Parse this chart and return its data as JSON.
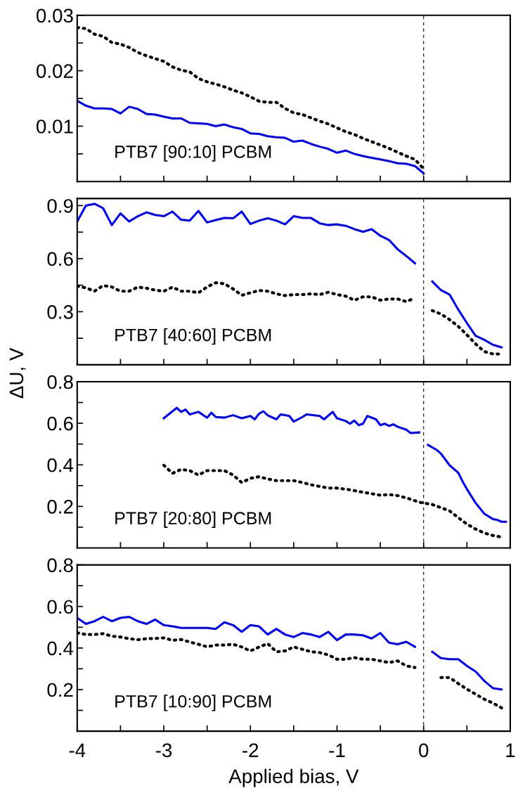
{
  "chart_data": [
    {
      "type": "line",
      "annotations": [
        "PTB7 [90:10] PCBM"
      ],
      "xlim": [
        -4,
        1
      ],
      "ylim": [
        0,
        0.03
      ],
      "tick_labels": "y",
      "marker": "none",
      "grid": false,
      "legend": false,
      "xticks": [
        -4,
        {
          "value": -3.5,
          "label": null
        },
        -3,
        {
          "value": -2.5,
          "label": null
        },
        -2,
        {
          "value": -1.5,
          "label": null
        },
        -1,
        {
          "value": -0.5,
          "label": null
        },
        0,
        {
          "value": 0.5,
          "label": null
        },
        1
      ],
      "yticks": [
        {
          "value": 0.005,
          "label": null
        },
        0.01,
        {
          "value": 0.015,
          "label": null
        },
        0.02,
        {
          "value": 0.025,
          "label": null
        },
        0.03
      ],
      "ref_lines": [
        {
          "axis": "x",
          "value": 0,
          "color": "#000000",
          "line_style": "dashed"
        }
      ],
      "series": [
        {
          "color": "#0000ff",
          "line_style": "solid",
          "x": [
            -4,
            -3.9,
            -3.8,
            -3.7,
            -3.6,
            -3.5,
            -3.4,
            -3.3,
            -3.2,
            -3.1,
            -3.0,
            -2.9,
            -2.8,
            -2.7,
            -2.6,
            -2.5,
            -2.4,
            -2.3,
            -2.2,
            -2.1,
            -2.0,
            -1.9,
            -1.8,
            -1.7,
            -1.6,
            -1.5,
            -1.4,
            -1.3,
            -1.2,
            -1.1,
            -1.0,
            -0.9,
            -0.8,
            -0.7,
            -0.6,
            -0.5,
            -0.4,
            -0.3,
            -0.2,
            -0.1,
            0
          ],
          "values": [
            0.0146,
            0.0137,
            0.0132,
            0.0132,
            0.0131,
            0.0123,
            0.0135,
            0.0131,
            0.0122,
            0.0121,
            0.0117,
            0.0114,
            0.0114,
            0.0106,
            0.0105,
            0.0104,
            0.01,
            0.0103,
            0.0098,
            0.0095,
            0.0087,
            0.0086,
            0.0082,
            0.008,
            0.0079,
            0.0072,
            0.0074,
            0.0068,
            0.0063,
            0.0059,
            0.0052,
            0.0056,
            0.005,
            0.0046,
            0.0043,
            0.004,
            0.0037,
            0.0033,
            0.0032,
            0.0028,
            0.0015
          ]
        },
        {
          "color": "#000000",
          "line_style": "dotted",
          "x": [
            -4,
            -3.9,
            -3.8,
            -3.7,
            -3.6,
            -3.5,
            -3.4,
            -3.3,
            -3.2,
            -3.1,
            -3.0,
            -2.9,
            -2.8,
            -2.7,
            -2.6,
            -2.5,
            -2.4,
            -2.3,
            -2.2,
            -2.1,
            -2.0,
            -1.9,
            -1.8,
            -1.7,
            -1.6,
            -1.5,
            -1.4,
            -1.3,
            -1.2,
            -1.1,
            -1.0,
            -0.9,
            -0.8,
            -0.7,
            -0.6,
            -0.5,
            -0.4,
            -0.3,
            -0.2,
            -0.1,
            0
          ],
          "values": [
            0.0278,
            0.0276,
            0.0266,
            0.0262,
            0.0251,
            0.0248,
            0.0242,
            0.0233,
            0.0227,
            0.0222,
            0.0217,
            0.0207,
            0.0201,
            0.0198,
            0.0186,
            0.018,
            0.0176,
            0.0171,
            0.0165,
            0.016,
            0.0153,
            0.0145,
            0.0143,
            0.0143,
            0.0132,
            0.0124,
            0.0121,
            0.0115,
            0.0109,
            0.0104,
            0.0097,
            0.009,
            0.0085,
            0.0078,
            0.0072,
            0.0066,
            0.006,
            0.0053,
            0.0046,
            0.004,
            0.0023
          ]
        }
      ]
    },
    {
      "type": "line",
      "annotations": [
        "PTB7 [40:60] PCBM"
      ],
      "ylabel": "ΔU, V",
      "xlim": [
        -4,
        1
      ],
      "ylim": [
        0,
        0.94
      ],
      "tick_labels": "y",
      "marker": "none",
      "grid": false,
      "legend": false,
      "xticks": [
        -4,
        {
          "value": -3.5,
          "label": null
        },
        -3,
        {
          "value": -2.5,
          "label": null
        },
        -2,
        {
          "value": -1.5,
          "label": null
        },
        -1,
        {
          "value": -0.5,
          "label": null
        },
        0,
        {
          "value": 0.5,
          "label": null
        },
        1
      ],
      "yticks": [
        {
          "value": 0.15,
          "label": null
        },
        0.3,
        {
          "value": 0.45,
          "label": null
        },
        0.6,
        {
          "value": 0.75,
          "label": null
        },
        0.9
      ],
      "ref_lines": [
        {
          "axis": "x",
          "value": 0,
          "color": "#000000",
          "line_style": "dashed"
        }
      ],
      "series": [
        {
          "color": "#0000ff",
          "line_style": "solid",
          "x": [
            -4,
            -3.9,
            -3.8,
            -3.7,
            -3.6,
            -3.5,
            -3.4,
            -3.3,
            -3.2,
            -3.1,
            -3.0,
            -2.9,
            -2.8,
            -2.7,
            -2.6,
            -2.5,
            -2.4,
            -2.3,
            -2.2,
            -2.1,
            -2.0,
            -1.9,
            -1.8,
            -1.7,
            -1.6,
            -1.5,
            -1.4,
            -1.3,
            -1.2,
            -1.1,
            -1.0,
            -0.9,
            -0.8,
            -0.7,
            -0.6,
            -0.5,
            -0.4,
            -0.3,
            -0.2,
            -0.1,
            0,
            0.1,
            0.2,
            0.3,
            0.4,
            0.5,
            0.6,
            0.7,
            0.8,
            0.9
          ],
          "values": [
            0.81,
            0.9,
            0.91,
            0.885,
            0.79,
            0.856,
            0.81,
            0.84,
            0.862,
            0.847,
            0.84,
            0.866,
            0.82,
            0.815,
            0.87,
            0.805,
            0.818,
            0.83,
            0.828,
            0.866,
            0.796,
            0.815,
            0.828,
            0.815,
            0.794,
            0.84,
            0.83,
            0.83,
            0.8,
            0.79,
            0.794,
            0.786,
            0.767,
            0.752,
            0.767,
            0.729,
            0.706,
            0.653,
            0.615,
            0.574,
            null,
            0.471,
            0.422,
            0.397,
            0.312,
            0.236,
            0.164,
            0.141,
            0.113,
            0.099
          ]
        },
        {
          "color": "#000000",
          "line_style": "dotted",
          "x": [
            -4,
            -3.9,
            -3.8,
            -3.7,
            -3.6,
            -3.5,
            -3.4,
            -3.3,
            -3.2,
            -3.1,
            -3.0,
            -2.9,
            -2.8,
            -2.7,
            -2.6,
            -2.5,
            -2.4,
            -2.3,
            -2.2,
            -2.1,
            -2.0,
            -1.9,
            -1.8,
            -1.7,
            -1.6,
            -1.5,
            -1.4,
            -1.3,
            -1.2,
            -1.1,
            -1.0,
            -0.9,
            -0.8,
            -0.7,
            -0.6,
            -0.5,
            -0.4,
            -0.3,
            -0.2,
            -0.1,
            0,
            0.1,
            0.2,
            0.3,
            0.4,
            0.5,
            0.6,
            0.7,
            0.8,
            0.9
          ],
          "values": [
            0.445,
            0.435,
            0.416,
            0.448,
            0.44,
            0.416,
            0.416,
            0.439,
            0.433,
            0.422,
            0.416,
            0.439,
            0.416,
            0.416,
            0.407,
            0.44,
            0.464,
            0.458,
            0.429,
            0.393,
            0.407,
            0.42,
            0.416,
            0.401,
            0.391,
            0.397,
            0.397,
            0.401,
            0.397,
            0.41,
            0.397,
            0.388,
            0.365,
            0.384,
            0.384,
            0.365,
            0.372,
            0.372,
            0.357,
            0.378,
            null,
            0.306,
            0.287,
            0.255,
            0.217,
            0.169,
            0.118,
            0.075,
            0.061,
            0.061
          ]
        }
      ]
    },
    {
      "type": "line",
      "annotations": [
        "PTB7 [20:80] PCBM"
      ],
      "xlim": [
        -4,
        1
      ],
      "ylim": [
        0,
        0.8
      ],
      "tick_labels": "y",
      "marker": "none",
      "grid": false,
      "legend": false,
      "xticks": [
        -4,
        {
          "value": -3.5,
          "label": null
        },
        -3,
        {
          "value": -2.5,
          "label": null
        },
        -2,
        {
          "value": -1.5,
          "label": null
        },
        -1,
        {
          "value": -0.5,
          "label": null
        },
        0,
        {
          "value": 0.5,
          "label": null
        },
        1
      ],
      "yticks": [
        {
          "value": 0.1,
          "label": null
        },
        0.2,
        {
          "value": 0.3,
          "label": null
        },
        0.4,
        {
          "value": 0.5,
          "label": null
        },
        0.6,
        {
          "value": 0.7,
          "label": null
        },
        0.8
      ],
      "ref_lines": [
        {
          "axis": "x",
          "value": 0,
          "color": "#000000",
          "line_style": "dashed"
        }
      ],
      "series": [
        {
          "color": "#0000ff",
          "line_style": "solid",
          "x": [
            -3,
            -2.9,
            -2.85,
            -2.8,
            -2.75,
            -2.7,
            -2.6,
            -2.5,
            -2.45,
            -2.4,
            -2.3,
            -2.2,
            -2.1,
            -2.0,
            -1.95,
            -1.9,
            -1.85,
            -1.8,
            -1.7,
            -1.65,
            -1.55,
            -1.5,
            -1.4,
            -1.35,
            -1.2,
            -1.15,
            -1.05,
            -1.0,
            -0.9,
            -0.85,
            -0.8,
            -0.75,
            -0.7,
            -0.65,
            -0.55,
            -0.5,
            -0.45,
            -0.4,
            -0.35,
            -0.3,
            -0.2,
            -0.15,
            -0.05,
            0,
            0.05,
            0.15,
            0.2,
            0.3,
            0.4,
            0.45,
            0.5,
            0.6,
            0.7,
            0.8,
            0.85,
            0.9,
            0.95
          ],
          "values": [
            0.624,
            0.658,
            0.674,
            0.655,
            0.666,
            0.643,
            0.655,
            0.627,
            0.651,
            0.63,
            0.627,
            0.639,
            0.624,
            0.635,
            0.619,
            0.646,
            0.658,
            0.638,
            0.619,
            0.643,
            0.635,
            0.608,
            0.63,
            0.643,
            0.635,
            0.619,
            0.655,
            0.624,
            0.611,
            0.598,
            0.613,
            0.591,
            0.598,
            0.635,
            0.619,
            0.591,
            0.598,
            0.587,
            0.595,
            0.583,
            0.569,
            0.553,
            0.556,
            null,
            0.496,
            0.472,
            0.454,
            0.398,
            0.362,
            0.32,
            0.283,
            0.217,
            0.165,
            0.139,
            0.135,
            0.126,
            0.126
          ]
        },
        {
          "color": "#000000",
          "line_style": "dotted",
          "x": [
            -3,
            -2.9,
            -2.8,
            -2.7,
            -2.6,
            -2.5,
            -2.4,
            -2.3,
            -2.2,
            -2.1,
            -2.0,
            -1.9,
            -1.8,
            -1.7,
            -1.6,
            -1.5,
            -1.4,
            -1.3,
            -1.2,
            -1.1,
            -1.0,
            -0.9,
            -0.8,
            -0.7,
            -0.6,
            -0.5,
            -0.4,
            -0.3,
            -0.2,
            -0.05,
            0.1,
            0.2,
            0.3,
            0.4,
            0.5,
            0.6,
            0.7,
            0.8,
            0.9
          ],
          "values": [
            0.398,
            0.359,
            0.378,
            0.372,
            0.351,
            0.372,
            0.372,
            0.372,
            0.351,
            0.315,
            0.335,
            0.343,
            0.332,
            0.324,
            0.324,
            0.324,
            0.315,
            0.304,
            0.296,
            0.288,
            0.288,
            0.283,
            0.276,
            0.268,
            0.261,
            0.254,
            0.257,
            0.252,
            0.241,
            0.22,
            0.209,
            0.194,
            0.178,
            0.146,
            0.115,
            0.091,
            0.072,
            0.06,
            0.052
          ]
        }
      ]
    },
    {
      "type": "line",
      "annotations": [
        "PTB7 [10:90] PCBM"
      ],
      "xlabel": "Applied bias, V",
      "xlim": [
        -4,
        1
      ],
      "ylim": [
        0,
        0.8
      ],
      "marker": "none",
      "grid": false,
      "legend": false,
      "xticks": [
        -4,
        {
          "value": -3.5,
          "label": null
        },
        -3,
        {
          "value": -2.5,
          "label": null
        },
        -2,
        {
          "value": -1.5,
          "label": null
        },
        -1,
        {
          "value": -0.5,
          "label": null
        },
        0,
        {
          "value": 0.5,
          "label": null
        },
        1
      ],
      "yticks": [
        {
          "value": 0.1,
          "label": null
        },
        0.2,
        {
          "value": 0.3,
          "label": null
        },
        0.4,
        {
          "value": 0.5,
          "label": null
        },
        0.6,
        {
          "value": 0.7,
          "label": null
        },
        0.8
      ],
      "ref_lines": [
        {
          "axis": "x",
          "value": 0,
          "color": "#000000",
          "line_style": "dashed"
        }
      ],
      "series": [
        {
          "color": "#0000ff",
          "line_style": "solid",
          "x": [
            -4,
            -3.9,
            -3.8,
            -3.7,
            -3.6,
            -3.5,
            -3.4,
            -3.3,
            -3.2,
            -3.1,
            -3.0,
            -2.9,
            -2.8,
            -2.7,
            -2.6,
            -2.5,
            -2.4,
            -2.3,
            -2.2,
            -2.1,
            -2.0,
            -1.9,
            -1.8,
            -1.7,
            -1.6,
            -1.5,
            -1.4,
            -1.3,
            -1.2,
            -1.1,
            -1.0,
            -0.9,
            -0.8,
            -0.7,
            -0.6,
            -0.5,
            -0.4,
            -0.3,
            -0.2,
            -0.1,
            0,
            0.1,
            0.2,
            0.3,
            0.4,
            0.5,
            0.6,
            0.7,
            0.8,
            0.9
          ],
          "values": [
            0.545,
            0.516,
            0.529,
            0.55,
            0.529,
            0.545,
            0.55,
            0.529,
            0.516,
            0.537,
            0.51,
            0.504,
            0.497,
            0.497,
            0.497,
            0.497,
            0.492,
            0.524,
            0.51,
            0.478,
            0.51,
            0.504,
            0.465,
            0.492,
            0.465,
            0.453,
            0.472,
            0.465,
            0.453,
            0.478,
            0.438,
            0.465,
            0.465,
            0.461,
            0.446,
            0.472,
            0.426,
            0.418,
            0.43,
            0.406,
            null,
            0.382,
            0.351,
            0.346,
            0.346,
            0.314,
            0.287,
            0.242,
            0.207,
            0.201
          ]
        },
        {
          "color": "#000000",
          "line_style": "dotted",
          "x": [
            -4,
            -3.9,
            -3.8,
            -3.7,
            -3.6,
            -3.5,
            -3.4,
            -3.3,
            -3.2,
            -3.1,
            -3.0,
            -2.9,
            -2.8,
            -2.7,
            -2.6,
            -2.5,
            -2.4,
            -2.3,
            -2.2,
            -2.1,
            -2.0,
            -1.9,
            -1.8,
            -1.7,
            -1.6,
            -1.5,
            -1.4,
            -1.3,
            -1.2,
            -1.1,
            -1.0,
            -0.9,
            -0.8,
            -0.7,
            -0.6,
            -0.5,
            -0.4,
            -0.3,
            -0.2,
            -0.1,
            0,
            0.2,
            0.3,
            0.4,
            0.5,
            0.6,
            0.7,
            0.8,
            0.9
          ],
          "values": [
            0.473,
            0.465,
            0.465,
            0.469,
            0.457,
            0.453,
            0.445,
            0.44,
            0.445,
            0.446,
            0.449,
            0.437,
            0.441,
            0.429,
            0.418,
            0.406,
            0.414,
            0.414,
            0.418,
            0.405,
            0.386,
            0.405,
            0.421,
            0.382,
            0.386,
            0.405,
            0.394,
            0.382,
            0.378,
            0.367,
            0.346,
            0.346,
            0.354,
            0.346,
            0.346,
            0.338,
            0.33,
            0.338,
            0.314,
            0.306,
            null,
            0.258,
            0.258,
            0.229,
            0.202,
            0.178,
            0.154,
            0.135,
            0.112
          ]
        }
      ]
    }
  ]
}
